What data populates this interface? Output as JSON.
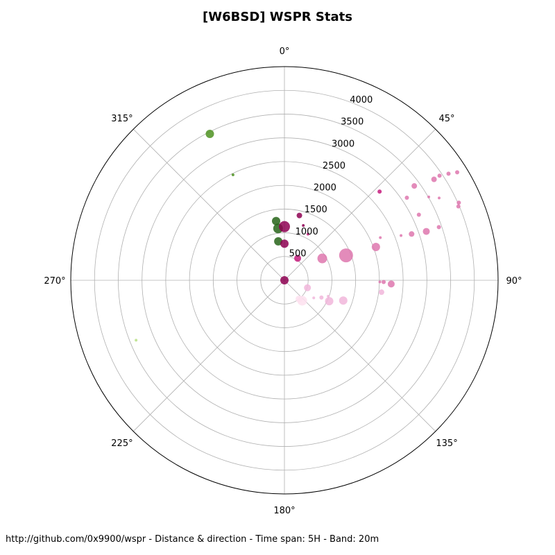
{
  "chart_data": {
    "type": "scatter",
    "projection": "polar",
    "title": "[W6BSD] WSPR Stats",
    "theta_direction": "clockwise",
    "theta_zero": "north",
    "angle_ticks": [
      {
        "deg": 0,
        "label": "0°"
      },
      {
        "deg": 45,
        "label": "45°"
      },
      {
        "deg": 90,
        "label": "90°"
      },
      {
        "deg": 135,
        "label": "135°"
      },
      {
        "deg": 180,
        "label": "180°"
      },
      {
        "deg": 225,
        "label": "225°"
      },
      {
        "deg": 270,
        "label": "270°"
      },
      {
        "deg": 315,
        "label": "315°"
      }
    ],
    "radial_ticks": [
      {
        "value": 500,
        "label": "500"
      },
      {
        "value": 1000,
        "label": "1000"
      },
      {
        "value": 1500,
        "label": "1500"
      },
      {
        "value": 2000,
        "label": "2000"
      },
      {
        "value": 2500,
        "label": "2500"
      },
      {
        "value": 3000,
        "label": "3000"
      },
      {
        "value": 3500,
        "label": "3500"
      },
      {
        "value": 4000,
        "label": "4000"
      }
    ],
    "rlim": [
      0,
      4500
    ],
    "grid": true,
    "points": [
      {
        "azimuth": 0,
        "distance": 0,
        "size": 6,
        "color": "#8e0152"
      },
      {
        "azimuth": 333,
        "distance": 3460,
        "size": 6,
        "color": "#4d9221"
      },
      {
        "azimuth": 334,
        "distance": 2470,
        "size": 2,
        "color": "#4d9221"
      },
      {
        "azimuth": 352,
        "distance": 1260,
        "size": 6,
        "color": "#276419"
      },
      {
        "azimuth": 353,
        "distance": 1100,
        "size": 7,
        "color": "#276419"
      },
      {
        "azimuth": 351,
        "distance": 830,
        "size": 6,
        "color": "#276419"
      },
      {
        "azimuth": 0,
        "distance": 1130,
        "size": 8,
        "color": "#8e0152"
      },
      {
        "azimuth": 0,
        "distance": 770,
        "size": 6,
        "color": "#8e0152"
      },
      {
        "azimuth": 13,
        "distance": 1400,
        "size": 4,
        "color": "#8e0152"
      },
      {
        "azimuth": 19,
        "distance": 1220,
        "size": 2,
        "color": "#8e0152"
      },
      {
        "azimuth": 27,
        "distance": 1090,
        "size": 2,
        "color": "#c51b7d"
      },
      {
        "azimuth": 47,
        "distance": 2740,
        "size": 3,
        "color": "#c51b7d"
      },
      {
        "azimuth": 31,
        "distance": 540,
        "size": 5,
        "color": "#c51b7d"
      },
      {
        "azimuth": 60,
        "distance": 920,
        "size": 7,
        "color": "#de77ae"
      },
      {
        "azimuth": 68,
        "distance": 1400,
        "size": 10,
        "color": "#de77ae"
      },
      {
        "azimuth": 56,
        "distance": 3110,
        "size": 3,
        "color": "#de77ae"
      },
      {
        "azimuth": 54,
        "distance": 3380,
        "size": 4,
        "color": "#de77ae"
      },
      {
        "azimuth": 56,
        "distance": 3800,
        "size": 4,
        "color": "#de77ae"
      },
      {
        "azimuth": 56,
        "distance": 3940,
        "size": 3,
        "color": "#de77ae"
      },
      {
        "azimuth": 57,
        "distance": 4120,
        "size": 3,
        "color": "#de77ae"
      },
      {
        "azimuth": 58,
        "distance": 4290,
        "size": 3,
        "color": "#de77ae"
      },
      {
        "azimuth": 62,
        "distance": 3690,
        "size": 2,
        "color": "#de77ae"
      },
      {
        "azimuth": 60,
        "distance": 3510,
        "size": 2,
        "color": "#de77ae"
      },
      {
        "azimuth": 64,
        "distance": 3150,
        "size": 3,
        "color": "#de77ae"
      },
      {
        "azimuth": 66,
        "distance": 2210,
        "size": 2,
        "color": "#de77ae"
      },
      {
        "azimuth": 69,
        "distance": 2630,
        "size": 2,
        "color": "#de77ae"
      },
      {
        "azimuth": 70,
        "distance": 2850,
        "size": 4,
        "color": "#de77ae"
      },
      {
        "azimuth": 70,
        "distance": 2050,
        "size": 6,
        "color": "#de77ae"
      },
      {
        "azimuth": 71,
        "distance": 3440,
        "size": 3,
        "color": "#de77ae"
      },
      {
        "azimuth": 71,
        "distance": 3160,
        "size": 5,
        "color": "#de77ae"
      },
      {
        "azimuth": 67,
        "distance": 3980,
        "size": 3,
        "color": "#de77ae"
      },
      {
        "azimuth": 66,
        "distance": 4020,
        "size": 3,
        "color": "#de77ae"
      },
      {
        "azimuth": 91,
        "distance": 2010,
        "size": 2,
        "color": "#de77ae"
      },
      {
        "azimuth": 91,
        "distance": 2090,
        "size": 3,
        "color": "#de77ae"
      },
      {
        "azimuth": 92,
        "distance": 2250,
        "size": 5,
        "color": "#de77ae"
      },
      {
        "azimuth": 97,
        "distance": 2060,
        "size": 4,
        "color": "#f1b6da"
      },
      {
        "azimuth": 109,
        "distance": 1310,
        "size": 6,
        "color": "#f1b6da"
      },
      {
        "azimuth": 115,
        "distance": 1040,
        "size": 6,
        "color": "#f1b6da"
      },
      {
        "azimuth": 110,
        "distance": 980,
        "size": 2,
        "color": "#f1b6da"
      },
      {
        "azimuth": 115,
        "distance": 860,
        "size": 3,
        "color": "#f1b6da"
      },
      {
        "azimuth": 121,
        "distance": 720,
        "size": 2,
        "color": "#f1b6da"
      },
      {
        "azimuth": 108,
        "distance": 510,
        "size": 5,
        "color": "#f1b6da"
      },
      {
        "azimuth": 139,
        "distance": 570,
        "size": 7,
        "color": "#fde0ef"
      },
      {
        "azimuth": 142,
        "distance": 500,
        "size": 5,
        "color": "#fde0ef"
      },
      {
        "azimuth": 248,
        "distance": 3370,
        "size": 2,
        "color": "#b8e186"
      }
    ]
  },
  "footer": {
    "caption": "http://github.com/0x9900/wspr - Distance & direction - Time span: 5H - Band: 20m"
  }
}
